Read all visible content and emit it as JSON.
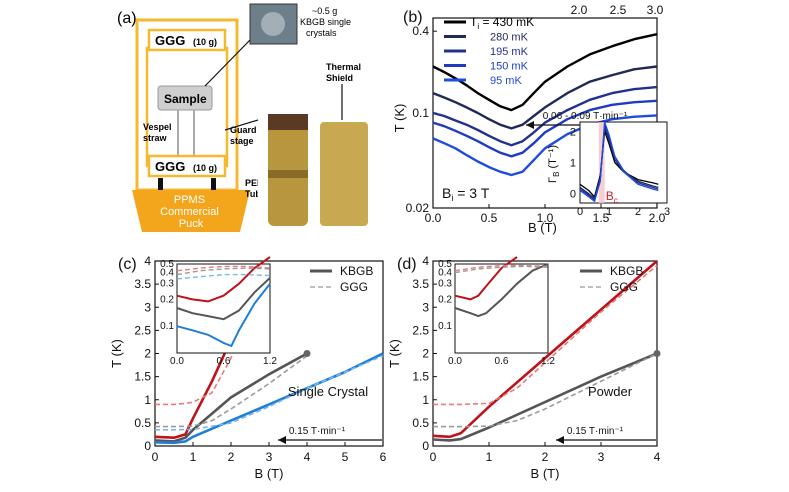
{
  "panel_a": {
    "label": "(a)",
    "ggg_top": "GGG",
    "ggg_top_mass": "(10 g)",
    "ggg_bottom": "GGG",
    "ggg_bottom_mass": "(10 g)",
    "sample": "Sample",
    "vespel": "Vespel\nstraw",
    "guard": "Guard\nstage",
    "peek": "PEEK\nTubes",
    "puck": "PPMS\nCommercial\nPuck",
    "crystals": "~0.5 g\nKBGB single\ncrystals",
    "shield": "Thermal\nShield",
    "colors": {
      "gold": "#f2b42a",
      "frame": "#f4b92f",
      "puck": "#f3a51c"
    }
  },
  "chart_data": [
    {
      "id": "b",
      "type": "line",
      "label": "(b)",
      "xlabel": "B (T)",
      "ylabel": "T (K)",
      "xlim": [
        0,
        2
      ],
      "ylim": [
        0.02,
        0.5
      ],
      "yscale": "log",
      "xticks": [
        "0.0",
        "0.5",
        "1.0",
        "1.5",
        "2.0"
      ],
      "yticks": [
        "0.02",
        "0.1",
        "0.4"
      ],
      "top_ticks": [
        "2.0",
        "2.5",
        "3.0"
      ],
      "legend_title": "T",
      "legend_sub": "i",
      "legend_title_suffix": " = 430 mK",
      "annotation_bi": "B",
      "annotation_bi_sub": "i",
      "annotation_bi_suffix": " = 3 T",
      "annotation_rate": "0.06 - 0.09 T·min⁻¹",
      "series": [
        {
          "name": "430 mK",
          "color": "#000000",
          "x": [
            0,
            0.1,
            0.2,
            0.3,
            0.4,
            0.5,
            0.6,
            0.7,
            0.8,
            0.9,
            1.0,
            1.2,
            1.4,
            1.6,
            1.8,
            2.0
          ],
          "y": [
            0.22,
            0.2,
            0.18,
            0.16,
            0.14,
            0.125,
            0.112,
            0.105,
            0.115,
            0.14,
            0.17,
            0.22,
            0.27,
            0.31,
            0.35,
            0.38
          ]
        },
        {
          "name": "280 mK",
          "color": "#1f2a55",
          "x": [
            0,
            0.1,
            0.2,
            0.3,
            0.4,
            0.5,
            0.6,
            0.7,
            0.8,
            0.9,
            1.0,
            1.2,
            1.4,
            1.6,
            1.8,
            2.0
          ],
          "y": [
            0.14,
            0.13,
            0.12,
            0.11,
            0.1,
            0.09,
            0.082,
            0.077,
            0.082,
            0.095,
            0.11,
            0.14,
            0.17,
            0.19,
            0.21,
            0.22
          ]
        },
        {
          "name": "195 mK",
          "color": "#23318e",
          "x": [
            0,
            0.1,
            0.2,
            0.3,
            0.4,
            0.5,
            0.6,
            0.7,
            0.8,
            0.9,
            1.0,
            1.2,
            1.4,
            1.6,
            1.8,
            2.0
          ],
          "y": [
            0.1,
            0.095,
            0.088,
            0.082,
            0.075,
            0.068,
            0.062,
            0.058,
            0.062,
            0.072,
            0.085,
            0.105,
            0.125,
            0.14,
            0.15,
            0.155
          ]
        },
        {
          "name": "150 mK",
          "color": "#1f3cc0",
          "x": [
            0,
            0.1,
            0.2,
            0.3,
            0.4,
            0.5,
            0.6,
            0.7,
            0.8,
            0.9,
            1.0,
            1.2,
            1.4,
            1.6,
            1.8,
            2.0
          ],
          "y": [
            0.085,
            0.08,
            0.074,
            0.068,
            0.062,
            0.056,
            0.051,
            0.048,
            0.051,
            0.06,
            0.072,
            0.09,
            0.105,
            0.115,
            0.12,
            0.123
          ]
        },
        {
          "name": "95 mK",
          "color": "#1e4be0",
          "x": [
            0,
            0.1,
            0.2,
            0.3,
            0.4,
            0.5,
            0.6,
            0.7,
            0.8,
            0.9,
            1.0,
            1.2,
            1.4,
            1.6,
            1.8,
            2.0
          ],
          "y": [
            0.065,
            0.06,
            0.055,
            0.049,
            0.044,
            0.04,
            0.037,
            0.035,
            0.037,
            0.045,
            0.055,
            0.07,
            0.082,
            0.09,
            0.094,
            0.096
          ]
        }
      ],
      "inset": {
        "xlim": [
          0,
          3
        ],
        "ylim": [
          -0.3,
          2.3
        ],
        "xticks": [
          "0",
          "1",
          "2",
          "3"
        ],
        "yticks": [
          "0",
          "1",
          "2"
        ],
        "ylabel": "Γ",
        "ylabel_sub": "B",
        "ylabel_unit": " (T⁻¹)",
        "marker": "B",
        "marker_sub": "c",
        "marker_x": 0.75,
        "series": [
          {
            "color": "#000000",
            "x": [
              0,
              0.3,
              0.5,
              0.7,
              0.85,
              1.0,
              1.2,
              1.5,
              2.0,
              2.5,
              2.7
            ],
            "y": [
              0.3,
              0.1,
              -0.1,
              0.6,
              2.0,
              1.6,
              1.0,
              0.7,
              0.45,
              0.35,
              0.3
            ]
          },
          {
            "color": "#1f2a55",
            "x": [
              0,
              0.3,
              0.5,
              0.7,
              0.85,
              1.0,
              1.2,
              1.5,
              2.0,
              2.5,
              2.7
            ],
            "y": [
              0.2,
              0.0,
              -0.15,
              0.5,
              2.1,
              1.7,
              1.1,
              0.7,
              0.4,
              0.25,
              0.2
            ]
          },
          {
            "color": "#23318e",
            "x": [
              0,
              0.3,
              0.5,
              0.7,
              0.85,
              1.0,
              1.2,
              1.5,
              2.0,
              2.5,
              2.7
            ],
            "y": [
              0.15,
              -0.05,
              -0.2,
              0.5,
              2.2,
              1.8,
              1.2,
              0.75,
              0.35,
              0.2,
              0.15
            ]
          },
          {
            "color": "#1e4be0",
            "x": [
              0,
              0.3,
              0.5,
              0.7,
              0.85,
              1.0,
              1.2,
              1.5,
              2.0,
              2.5,
              2.7
            ],
            "y": [
              0.1,
              -0.1,
              -0.25,
              0.4,
              2.3,
              1.9,
              1.2,
              0.7,
              0.3,
              0.15,
              0.1
            ]
          }
        ]
      }
    },
    {
      "id": "c",
      "type": "line",
      "label": "(c)",
      "xlabel": "B (T)",
      "ylabel": "T (K)",
      "xlim": [
        0,
        6
      ],
      "ylim": [
        0,
        4
      ],
      "xticks": [
        "0",
        "1",
        "2",
        "3",
        "4",
        "5",
        "6"
      ],
      "yticks": [
        "0",
        "0.5",
        "1",
        "1.5",
        "2",
        "2.5",
        "3",
        "3.5",
        "4"
      ],
      "legend": [
        {
          "name": "KBGB",
          "style": "solid"
        },
        {
          "name": "GGG",
          "style": "dashed"
        }
      ],
      "annotation_sample": "Single Crystal",
      "annotation_rate": "0.15 T·min⁻¹",
      "series": [
        {
          "name": "KBGB high",
          "color": "#c0121a",
          "style": "solid",
          "x": [
            0,
            0.5,
            0.8,
            1.0,
            1.5,
            2.0,
            2.5,
            3.0
          ],
          "y": [
            0.2,
            0.18,
            0.25,
            0.6,
            1.4,
            2.3,
            3.1,
            3.9
          ]
        },
        {
          "name": "GGG high",
          "color": "#e87a7a",
          "style": "dashed",
          "x": [
            0,
            0.5,
            0.8,
            1.0,
            1.5,
            2.0,
            2.5,
            3.0
          ],
          "y": [
            0.9,
            0.9,
            0.92,
            0.95,
            1.15,
            1.9,
            2.8,
            3.8
          ]
        },
        {
          "name": "KBGB mid",
          "color": "#555555",
          "style": "solid",
          "x": [
            0,
            0.5,
            0.8,
            1.0,
            1.5,
            2.0,
            3.0,
            4.0
          ],
          "y": [
            0.12,
            0.1,
            0.18,
            0.35,
            0.7,
            1.05,
            1.55,
            2.0
          ]
        },
        {
          "name": "GGG mid",
          "color": "#9a9a9a",
          "style": "dashed",
          "x": [
            0,
            0.5,
            1.0,
            1.5,
            2.0,
            3.0,
            4.0
          ],
          "y": [
            0.42,
            0.42,
            0.43,
            0.55,
            0.8,
            1.35,
            1.95
          ]
        },
        {
          "name": "KBGB low",
          "color": "#1f7fd8",
          "style": "solid",
          "x": [
            0,
            0.5,
            0.8,
            1.0,
            2.0,
            3.0,
            4.0,
            5.0,
            6.0
          ],
          "y": [
            0.08,
            0.07,
            0.1,
            0.2,
            0.55,
            0.9,
            1.25,
            1.6,
            2.0
          ]
        },
        {
          "name": "GGG low",
          "color": "#7ab6ee",
          "style": "dashed",
          "x": [
            0,
            0.5,
            1.0,
            2.0,
            3.0,
            4.0,
            5.0,
            6.0
          ],
          "y": [
            0.35,
            0.35,
            0.36,
            0.5,
            0.85,
            1.25,
            1.6,
            1.95
          ]
        }
      ],
      "inset": {
        "xlim": [
          0,
          1.2
        ],
        "ylim": [
          0.05,
          0.5
        ],
        "yscale": "log",
        "xticks": [
          "0.0",
          "0.6",
          "1.2"
        ],
        "yticks": [
          "0.1",
          "0.2",
          "0.3",
          "0.4",
          "0.5"
        ],
        "series": [
          {
            "color": "#c0121a",
            "style": "solid",
            "x": [
              0,
              0.2,
              0.4,
              0.6,
              0.8,
              1.0,
              1.2
            ],
            "y": [
              0.22,
              0.2,
              0.19,
              0.22,
              0.3,
              0.45,
              0.6
            ]
          },
          {
            "color": "#555555",
            "style": "solid",
            "x": [
              0,
              0.2,
              0.4,
              0.6,
              0.8,
              1.0,
              1.2
            ],
            "y": [
              0.16,
              0.14,
              0.13,
              0.12,
              0.15,
              0.24,
              0.35
            ]
          },
          {
            "color": "#1f7fd8",
            "style": "solid",
            "x": [
              0,
              0.2,
              0.4,
              0.6,
              0.7,
              0.8,
              1.0,
              1.2
            ],
            "y": [
              0.1,
              0.09,
              0.08,
              0.065,
              0.06,
              0.09,
              0.18,
              0.3
            ]
          },
          {
            "color": "#e87a7a",
            "style": "dashed",
            "x": [
              0,
              0.3,
              0.6,
              0.9,
              1.2
            ],
            "y": [
              0.42,
              0.45,
              0.47,
              0.47,
              0.45
            ]
          },
          {
            "color": "#9a9a9a",
            "style": "dashed",
            "x": [
              0,
              0.3,
              0.6,
              0.9,
              1.2
            ],
            "y": [
              0.38,
              0.42,
              0.44,
              0.45,
              0.44
            ]
          },
          {
            "color": "#7ab6ee",
            "style": "dashed",
            "x": [
              0,
              0.3,
              0.6,
              0.9,
              1.2
            ],
            "y": [
              0.34,
              0.36,
              0.38,
              0.38,
              0.37
            ]
          }
        ]
      }
    },
    {
      "id": "d",
      "type": "line",
      "label": "(d)",
      "xlabel": "B (T)",
      "ylabel": "T (K)",
      "xlim": [
        0,
        4
      ],
      "ylim": [
        0,
        4
      ],
      "xticks": [
        "0",
        "1",
        "2",
        "3",
        "4"
      ],
      "yticks": [
        "0",
        "0.5",
        "1",
        "1.5",
        "2",
        "2.5",
        "3",
        "3.5",
        "4"
      ],
      "legend": [
        {
          "name": "KBGB",
          "style": "solid"
        },
        {
          "name": "GGG",
          "style": "dashed"
        }
      ],
      "annotation_sample": "Powder",
      "annotation_rate": "0.15 T·min⁻¹",
      "series": [
        {
          "name": "KBGB high",
          "color": "#c0121a",
          "style": "solid",
          "x": [
            0,
            0.3,
            0.5,
            1.0,
            2.0,
            3.0,
            4.0
          ],
          "y": [
            0.22,
            0.2,
            0.28,
            0.85,
            1.9,
            2.95,
            4.0
          ]
        },
        {
          "name": "GGG high",
          "color": "#e87a7a",
          "style": "dashed",
          "x": [
            0,
            0.5,
            1.0,
            1.5,
            2.0,
            3.0,
            4.0
          ],
          "y": [
            0.9,
            0.9,
            0.92,
            1.25,
            1.8,
            2.9,
            3.9
          ]
        },
        {
          "name": "KBGB low",
          "color": "#555555",
          "style": "solid",
          "x": [
            0,
            0.3,
            0.5,
            1.0,
            2.0,
            3.0,
            4.0
          ],
          "y": [
            0.14,
            0.12,
            0.15,
            0.4,
            0.95,
            1.5,
            2.0
          ]
        },
        {
          "name": "GGG low",
          "color": "#9a9a9a",
          "style": "dashed",
          "x": [
            0,
            0.5,
            1.0,
            1.5,
            2.0,
            3.0,
            4.0
          ],
          "y": [
            0.42,
            0.42,
            0.43,
            0.55,
            0.8,
            1.4,
            2.0
          ]
        }
      ],
      "inset": {
        "xlim": [
          0,
          1.2
        ],
        "ylim": [
          0.05,
          0.5
        ],
        "yscale": "log",
        "xticks": [
          "0.0",
          "0.6",
          "1.2"
        ],
        "yticks": [
          "0.1",
          "0.2",
          "0.3",
          "0.4",
          "0.5"
        ],
        "series": [
          {
            "color": "#c0121a",
            "style": "solid",
            "x": [
              0,
              0.2,
              0.3,
              0.4,
              0.6,
              0.8
            ],
            "y": [
              0.22,
              0.2,
              0.22,
              0.28,
              0.45,
              0.6
            ]
          },
          {
            "color": "#555555",
            "style": "solid",
            "x": [
              0,
              0.2,
              0.3,
              0.4,
              0.6,
              0.8,
              1.0,
              1.2
            ],
            "y": [
              0.16,
              0.14,
              0.13,
              0.14,
              0.2,
              0.3,
              0.42,
              0.5
            ]
          },
          {
            "color": "#e87a7a",
            "style": "dashed",
            "x": [
              0,
              0.3,
              0.6,
              0.9,
              1.2
            ],
            "y": [
              0.42,
              0.46,
              0.48,
              0.48,
              0.47
            ]
          },
          {
            "color": "#9a9a9a",
            "style": "dashed",
            "x": [
              0,
              0.3,
              0.6,
              0.9,
              1.2
            ],
            "y": [
              0.4,
              0.44,
              0.46,
              0.47,
              0.46
            ]
          }
        ]
      }
    }
  ]
}
